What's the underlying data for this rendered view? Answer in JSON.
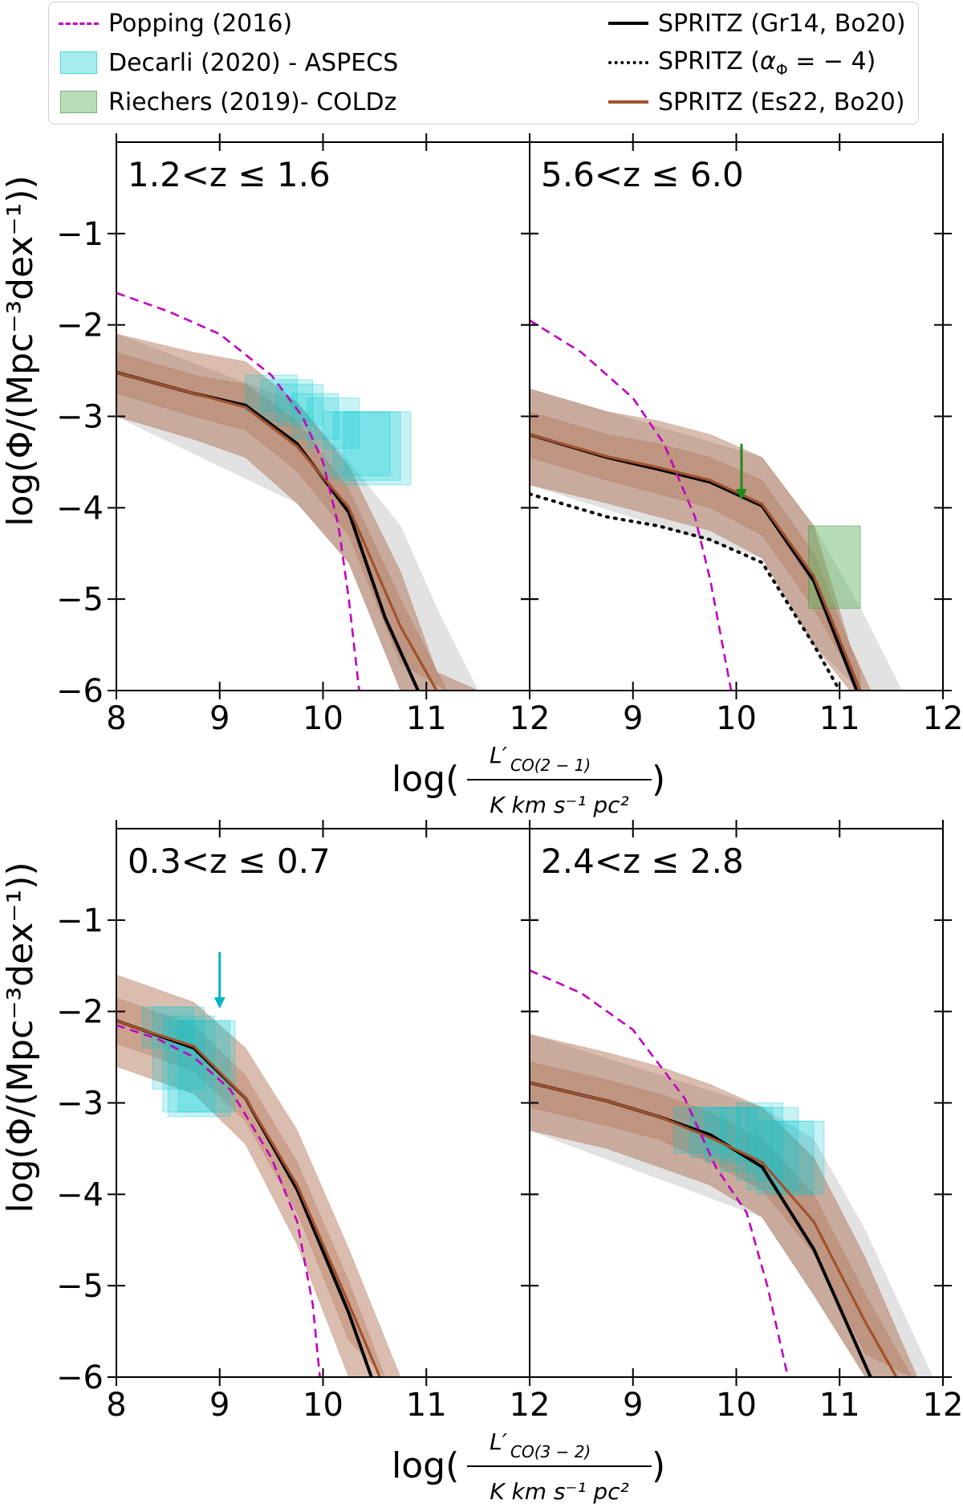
{
  "legend": {
    "popping": "Popping (2016)",
    "decarli": "Decarli (2020) - ASPECS",
    "riechers": "Riechers (2019)- COLDz",
    "gr14": "SPRITZ (Gr14, Bo20)",
    "alpha_prefix": "SPRITZ (",
    "alpha_sym": "α",
    "alpha_sub": "Φ",
    "alpha_suffix": " = − 4)",
    "es22": "SPRITZ (Es22, Bo20)"
  },
  "y_axis_label": "log(Φ/(Mpc⁻³dex⁻¹))",
  "xlabels": {
    "top": {
      "log": "log(",
      "numerator": "L′",
      "num_sub": "CO(2 − 1)",
      "denominator": "K km s⁻¹ pc²",
      "close": ")"
    },
    "bottom": {
      "log": "log(",
      "numerator": "L′",
      "num_sub": "CO(3 − 2)",
      "denominator": "K km s⁻¹ pc²",
      "close": ")"
    }
  },
  "colors": {
    "popping": "#c000c0",
    "gr14": "#000000",
    "es22": "#a0522d",
    "brown_band": "#a0522d",
    "grey_band": "#a6a6a6",
    "decarli": "#00c8d2",
    "riechers": "#5fb35f"
  },
  "chart_data": [
    {
      "type": "line",
      "panel": "top-left",
      "title": "1.2<z ≤ 1.6",
      "xlim": [
        8,
        12
      ],
      "ylim": [
        -6,
        0
      ],
      "xticks": [
        8,
        9,
        10,
        11,
        12
      ],
      "xtick_labels": [
        "8",
        "9",
        "10",
        "11",
        "12"
      ],
      "yticks": [
        -1,
        -2,
        -3,
        -4,
        -5,
        -6
      ],
      "ytick_labels": [
        "−1",
        "−2",
        "−3",
        "−4",
        "−5",
        "−6"
      ],
      "series": [
        {
          "name": "SPRITZ (Gr14, Bo20)",
          "x": [
            8,
            8.75,
            9.25,
            9.75,
            10.25,
            10.6,
            11.0
          ],
          "values": [
            -2.52,
            -2.75,
            -2.88,
            -3.3,
            -4.05,
            -5.2,
            -6.2
          ]
        },
        {
          "name": "SPRITZ (Es22, Bo20)",
          "x": [
            8,
            8.75,
            9.25,
            9.75,
            10.25,
            10.75,
            11.2
          ],
          "values": [
            -2.52,
            -2.75,
            -2.9,
            -3.33,
            -4.0,
            -5.3,
            -6.2
          ]
        },
        {
          "name": "Popping (2016)",
          "x": [
            8,
            8.5,
            9,
            9.5,
            9.8,
            10.0,
            10.15,
            10.25,
            10.35
          ],
          "values": [
            -1.65,
            -1.85,
            -2.1,
            -2.55,
            -3.0,
            -3.5,
            -4.2,
            -5.0,
            -6.0
          ]
        }
      ],
      "bands": [
        {
          "name": "brown outer",
          "x": [
            8,
            8.75,
            9.25,
            9.75,
            10.25,
            10.75,
            11.1,
            11.5
          ],
          "upper": [
            -2.1,
            -2.3,
            -2.4,
            -2.85,
            -3.55,
            -4.7,
            -5.8,
            -6.0
          ],
          "lower": [
            -3.0,
            -3.25,
            -3.45,
            -3.95,
            -4.6,
            -6.0,
            -6.0,
            -6.0
          ]
        },
        {
          "name": "brown inner",
          "x": [
            8,
            8.75,
            9.25,
            9.75,
            10.25,
            10.75,
            11.2
          ],
          "upper": [
            -2.3,
            -2.55,
            -2.65,
            -3.05,
            -3.8,
            -5.0,
            -6.0
          ],
          "lower": [
            -2.75,
            -3.0,
            -3.15,
            -3.6,
            -4.3,
            -5.7,
            -6.0
          ]
        },
        {
          "name": "grey",
          "x": [
            8,
            9.75,
            10.25,
            10.75,
            11.1,
            11.5
          ],
          "upper": [
            -2.1,
            -2.85,
            -3.5,
            -4.2,
            -5.1,
            -6.0
          ],
          "lower": [
            -3.0,
            -3.95,
            -4.6,
            -6.0,
            -6.0,
            -6.0
          ]
        }
      ],
      "boxes_decarli": [
        {
          "x": [
            9.25,
            9.75
          ],
          "y": [
            -2.55,
            -2.95
          ]
        },
        {
          "x": [
            9.4,
            9.9
          ],
          "y": [
            -2.6,
            -3.05
          ]
        },
        {
          "x": [
            9.55,
            10.0
          ],
          "y": [
            -2.65,
            -3.1
          ]
        },
        {
          "x": [
            9.7,
            10.15
          ],
          "y": [
            -2.75,
            -3.25
          ]
        },
        {
          "x": [
            9.85,
            10.35
          ],
          "y": [
            -2.8,
            -3.35
          ]
        },
        {
          "x": [
            10.0,
            10.65
          ],
          "y": [
            -2.95,
            -3.65
          ]
        },
        {
          "x": [
            10.1,
            10.75
          ],
          "y": [
            -2.95,
            -3.7
          ]
        },
        {
          "x": [
            10.2,
            10.85
          ],
          "y": [
            -2.95,
            -3.75
          ]
        }
      ],
      "boxes_riechers": [],
      "upper_limits": []
    },
    {
      "type": "line",
      "panel": "top-right",
      "title": "5.6<z ≤ 6.0",
      "xlim": [
        8,
        12
      ],
      "ylim": [
        -6,
        0
      ],
      "xticks": [
        9,
        10,
        11,
        12
      ],
      "xtick_labels": [
        "9",
        "10",
        "11",
        "12"
      ],
      "yticks": [
        -1,
        -2,
        -3,
        -4,
        -5,
        -6
      ],
      "ytick_labels": [],
      "series": [
        {
          "name": "SPRITZ (Gr14, Bo20)",
          "x": [
            8,
            8.75,
            9.25,
            9.75,
            10.25,
            10.75,
            11.2
          ],
          "values": [
            -3.2,
            -3.45,
            -3.58,
            -3.72,
            -3.98,
            -4.8,
            -6.1
          ]
        },
        {
          "name": "SPRITZ (Es22, Bo20)",
          "x": [
            8,
            8.75,
            9.25,
            9.75,
            10.25,
            10.75,
            11.2
          ],
          "values": [
            -3.2,
            -3.44,
            -3.56,
            -3.7,
            -3.96,
            -4.75,
            -6.0
          ]
        },
        {
          "name": "SPRITZ (α_Φ = −4)",
          "x": [
            8,
            8.75,
            9.25,
            9.75,
            10.25,
            10.75,
            11.0
          ],
          "values": [
            -3.85,
            -4.1,
            -4.2,
            -4.35,
            -4.6,
            -5.5,
            -6.0
          ]
        },
        {
          "name": "Popping (2016)",
          "x": [
            8,
            8.5,
            9,
            9.3,
            9.6,
            9.75,
            9.85,
            9.95
          ],
          "values": [
            -1.95,
            -2.3,
            -2.8,
            -3.3,
            -4.1,
            -4.8,
            -5.4,
            -6.0
          ]
        }
      ],
      "bands": [
        {
          "name": "brown outer",
          "x": [
            8,
            8.75,
            9.25,
            9.75,
            10.25,
            10.75,
            11.1,
            11.3
          ],
          "upper": [
            -2.7,
            -2.95,
            -3.05,
            -3.2,
            -3.45,
            -4.2,
            -5.5,
            -6.0
          ],
          "lower": [
            -3.75,
            -3.95,
            -4.1,
            -4.25,
            -4.55,
            -5.5,
            -6.0,
            -6.0
          ]
        },
        {
          "name": "brown inner",
          "x": [
            8,
            8.75,
            9.25,
            9.75,
            10.25,
            10.75,
            11.2
          ],
          "upper": [
            -2.95,
            -3.2,
            -3.3,
            -3.45,
            -3.7,
            -4.5,
            -5.8
          ],
          "lower": [
            -3.45,
            -3.7,
            -3.85,
            -4.0,
            -4.3,
            -5.1,
            -6.0
          ]
        },
        {
          "name": "grey",
          "x": [
            8,
            10.25,
            10.75,
            11.2,
            11.6
          ],
          "upper": [
            -2.7,
            -3.45,
            -4.2,
            -5.1,
            -6.0
          ],
          "lower": [
            -3.75,
            -4.55,
            -5.5,
            -6.0,
            -6.0
          ]
        }
      ],
      "boxes_decarli": [],
      "boxes_riechers": [
        {
          "x": [
            10.7,
            11.2
          ],
          "y": [
            -4.2,
            -5.1
          ]
        }
      ],
      "upper_limits": [
        {
          "x": 10.05,
          "y_start": -3.3,
          "y_end": -3.9,
          "color": "#1e8a1e"
        }
      ]
    },
    {
      "type": "line",
      "panel": "bottom-left",
      "title": "0.3<z ≤ 0.7",
      "xlim": [
        8,
        12
      ],
      "ylim": [
        -6,
        0
      ],
      "xticks": [
        8,
        9,
        10,
        11,
        12
      ],
      "xtick_labels": [
        "8",
        "9",
        "10",
        "11",
        "12"
      ],
      "yticks": [
        -1,
        -2,
        -3,
        -4,
        -5,
        -6
      ],
      "ytick_labels": [
        "−1",
        "−2",
        "−3",
        "−4",
        "−5",
        "−6"
      ],
      "series": [
        {
          "name": "SPRITZ (Gr14, Bo20)",
          "x": [
            8,
            8.25,
            8.75,
            9.25,
            9.75,
            10.25,
            10.5
          ],
          "values": [
            -2.1,
            -2.2,
            -2.4,
            -2.95,
            -3.95,
            -5.3,
            -6.1
          ]
        },
        {
          "name": "SPRITZ (Es22, Bo20)",
          "x": [
            8,
            8.25,
            8.75,
            9.25,
            9.75,
            10.25,
            10.55
          ],
          "values": [
            -2.1,
            -2.2,
            -2.38,
            -2.95,
            -3.9,
            -5.2,
            -6.0
          ]
        },
        {
          "name": "Popping (2016)",
          "x": [
            8,
            8.4,
            8.75,
            9.1,
            9.5,
            9.75,
            9.9,
            9.97
          ],
          "values": [
            -2.15,
            -2.3,
            -2.5,
            -2.85,
            -3.6,
            -4.3,
            -5.2,
            -6.0
          ]
        }
      ],
      "bands": [
        {
          "name": "brown outer",
          "x": [
            8,
            8.25,
            8.75,
            9.25,
            9.75,
            10.25,
            10.75
          ],
          "upper": [
            -1.6,
            -1.7,
            -1.9,
            -2.4,
            -3.3,
            -4.6,
            -6.0
          ],
          "lower": [
            -2.6,
            -2.7,
            -2.9,
            -3.45,
            -4.55,
            -6.0,
            -6.0
          ]
        },
        {
          "name": "brown inner",
          "x": [
            8,
            8.25,
            8.75,
            9.25,
            9.75,
            10.25,
            10.6
          ],
          "upper": [
            -1.85,
            -1.95,
            -2.15,
            -2.7,
            -3.65,
            -4.95,
            -6.0
          ],
          "lower": [
            -2.35,
            -2.45,
            -2.65,
            -3.2,
            -4.2,
            -5.6,
            -6.0
          ]
        }
      ],
      "boxes_decarli": [
        {
          "x": [
            8.25,
            8.75
          ],
          "y": [
            -1.95,
            -2.4
          ]
        },
        {
          "x": [
            8.35,
            8.85
          ],
          "y": [
            -1.95,
            -2.85
          ]
        },
        {
          "x": [
            8.45,
            8.95
          ],
          "y": [
            -2.05,
            -3.1
          ]
        },
        {
          "x": [
            8.5,
            9.1
          ],
          "y": [
            -2.1,
            -3.15
          ]
        },
        {
          "x": [
            8.6,
            9.15
          ],
          "y": [
            -2.1,
            -3.1
          ]
        }
      ],
      "boxes_riechers": [],
      "upper_limits": [
        {
          "x": 9.0,
          "y_start": -1.35,
          "y_end": -1.95,
          "color": "#00b4c8"
        }
      ]
    },
    {
      "type": "line",
      "panel": "bottom-right",
      "title": "2.4<z ≤ 2.8",
      "xlim": [
        8,
        12
      ],
      "ylim": [
        -6,
        0
      ],
      "xticks": [
        9,
        10,
        11,
        12
      ],
      "xtick_labels": [
        "9",
        "10",
        "11",
        "12"
      ],
      "yticks": [
        -1,
        -2,
        -3,
        -4,
        -5,
        -6
      ],
      "ytick_labels": [],
      "series": [
        {
          "name": "SPRITZ (Gr14, Bo20)",
          "x": [
            8,
            8.75,
            9.25,
            9.75,
            10.25,
            10.75,
            11.3
          ],
          "values": [
            -2.78,
            -2.98,
            -3.15,
            -3.35,
            -3.7,
            -4.6,
            -6.0
          ]
        },
        {
          "name": "SPRITZ (Es22, Bo20)",
          "x": [
            8,
            8.75,
            9.25,
            9.75,
            10.25,
            10.75,
            11.25,
            11.6
          ],
          "values": [
            -2.78,
            -2.98,
            -3.15,
            -3.38,
            -3.65,
            -4.3,
            -5.4,
            -6.1
          ]
        },
        {
          "name": "Popping (2016)",
          "x": [
            8,
            8.5,
            9,
            9.5,
            9.8,
            10.1,
            10.3,
            10.5
          ],
          "values": [
            -1.55,
            -1.8,
            -2.2,
            -2.95,
            -3.7,
            -4.2,
            -5.0,
            -6.0
          ]
        }
      ],
      "bands": [
        {
          "name": "brown outer",
          "x": [
            8,
            8.75,
            9.25,
            9.75,
            10.25,
            10.75,
            11.25,
            11.75
          ],
          "upper": [
            -2.25,
            -2.45,
            -2.6,
            -2.8,
            -3.05,
            -3.6,
            -4.7,
            -6.0
          ],
          "lower": [
            -3.3,
            -3.5,
            -3.7,
            -3.9,
            -4.25,
            -5.1,
            -6.0,
            -6.0
          ]
        },
        {
          "name": "brown inner",
          "x": [
            8,
            8.75,
            9.25,
            9.75,
            10.25,
            10.75,
            11.25,
            11.7
          ],
          "upper": [
            -2.55,
            -2.75,
            -2.9,
            -3.1,
            -3.4,
            -4.0,
            -5.1,
            -6.0
          ],
          "lower": [
            -3.05,
            -3.25,
            -3.4,
            -3.65,
            -3.95,
            -4.65,
            -5.75,
            -6.0
          ]
        },
        {
          "name": "grey",
          "x": [
            8,
            10.25,
            10.75,
            11.25,
            11.9
          ],
          "upper": [
            -2.25,
            -3.05,
            -3.4,
            -4.4,
            -6.0
          ],
          "lower": [
            -3.3,
            -4.25,
            -5.1,
            -6.0,
            -6.0
          ]
        }
      ],
      "boxes_decarli": [
        {
          "x": [
            9.4,
            9.9
          ],
          "y": [
            -3.05,
            -3.55
          ]
        },
        {
          "x": [
            9.55,
            10.05
          ],
          "y": [
            -3.05,
            -3.6
          ]
        },
        {
          "x": [
            9.7,
            10.2
          ],
          "y": [
            -3.05,
            -3.65
          ]
        },
        {
          "x": [
            9.85,
            10.35
          ],
          "y": [
            -3.05,
            -3.75
          ]
        },
        {
          "x": [
            10.0,
            10.45
          ],
          "y": [
            -3.0,
            -3.85
          ]
        },
        {
          "x": [
            10.1,
            10.6
          ],
          "y": [
            -3.05,
            -3.95
          ]
        },
        {
          "x": [
            10.2,
            10.75
          ],
          "y": [
            -3.2,
            -4.0
          ]
        },
        {
          "x": [
            10.35,
            10.85
          ],
          "y": [
            -3.2,
            -4.0
          ]
        }
      ],
      "boxes_riechers": [],
      "upper_limits": []
    }
  ]
}
